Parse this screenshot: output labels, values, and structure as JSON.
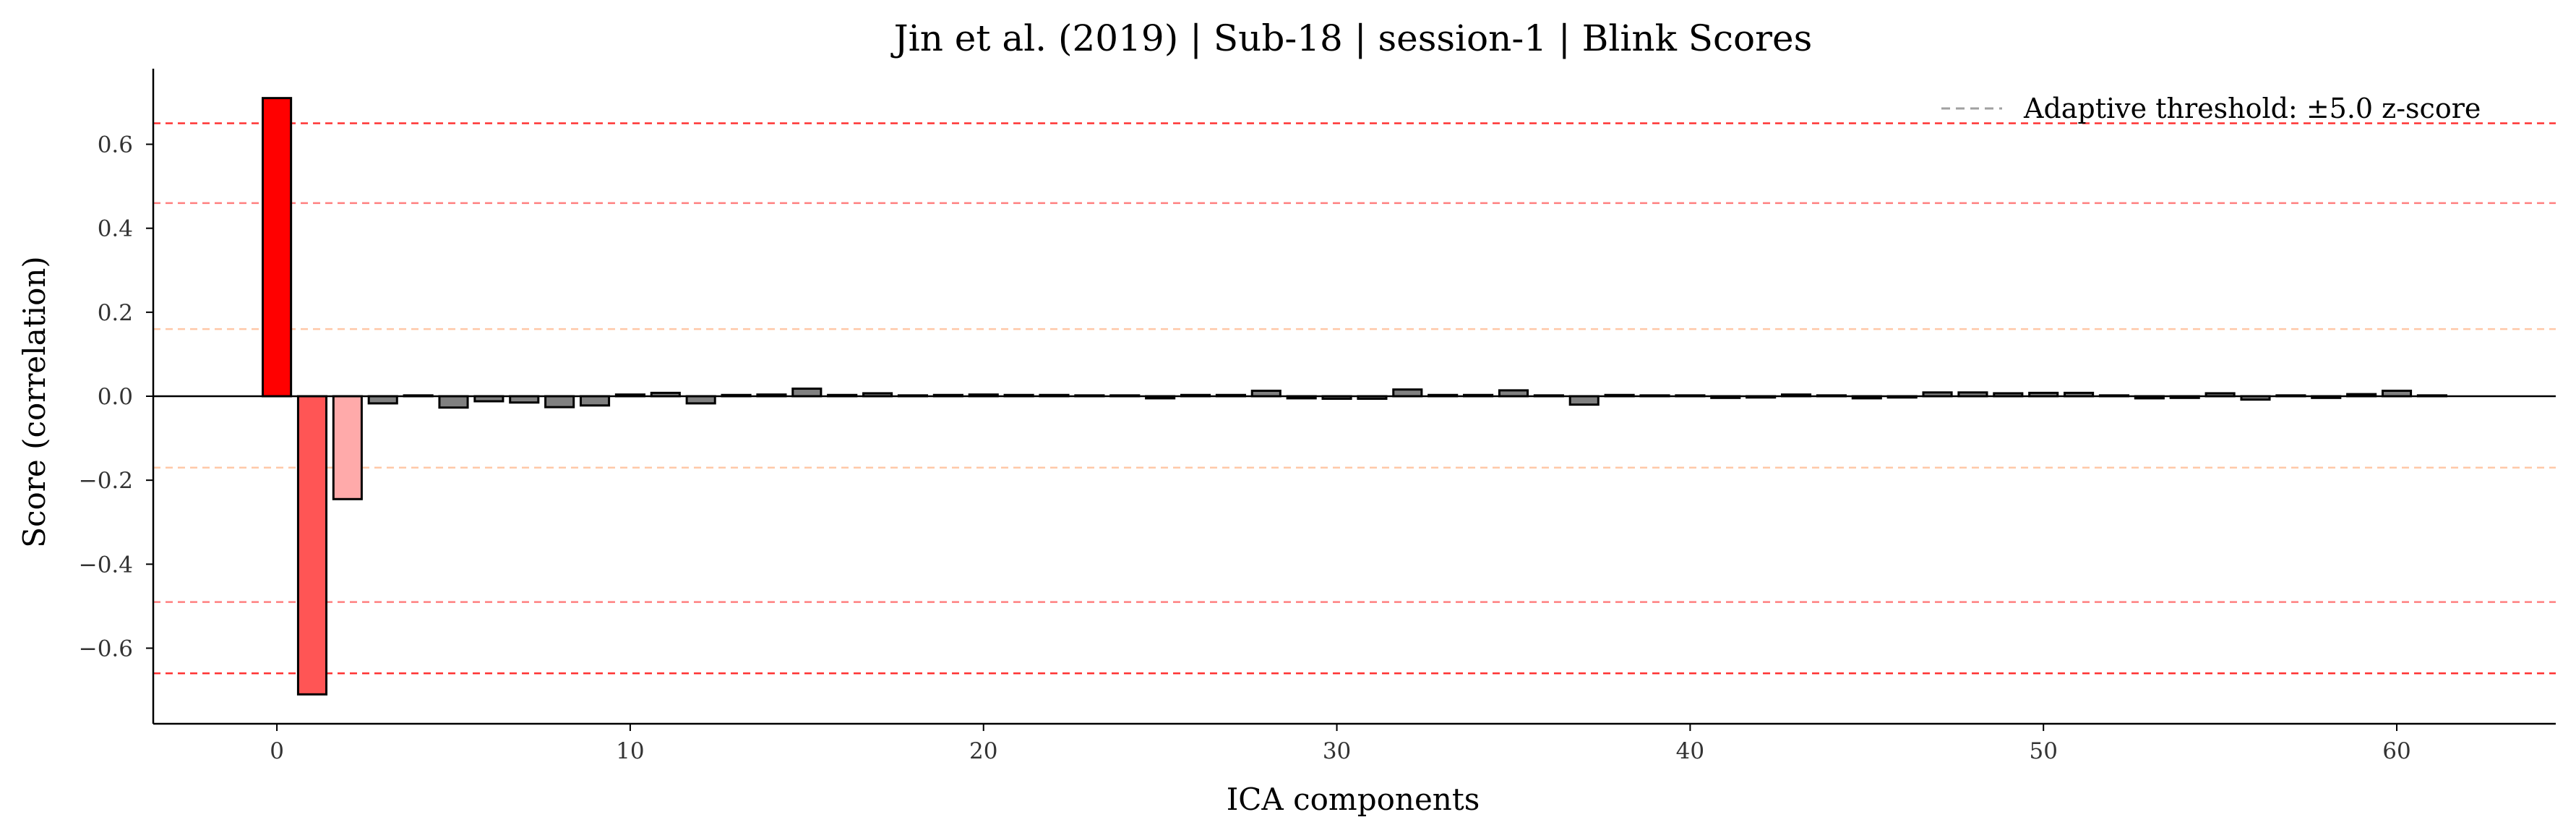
{
  "chart_data": {
    "type": "bar",
    "title": "Jin et al. (2019) | Sub-18 | session-1 | Blink Scores",
    "xlabel": "ICA components",
    "ylabel": "Score (correlation)",
    "xlim": [
      -3.5,
      64.5
    ],
    "ylim": [
      -0.78,
      0.78
    ],
    "xticks": [
      0,
      10,
      20,
      30,
      40,
      50,
      60
    ],
    "yticks": [
      -0.6,
      -0.4,
      -0.2,
      0.0,
      0.2,
      0.4,
      0.6
    ],
    "ytick_labels": [
      "−0.6",
      "−0.4",
      "−0.2",
      "0.0",
      "0.2",
      "0.4",
      "0.6"
    ],
    "x": [
      0,
      1,
      2,
      3,
      4,
      5,
      6,
      7,
      8,
      9,
      10,
      11,
      12,
      13,
      14,
      15,
      16,
      17,
      18,
      19,
      20,
      21,
      22,
      23,
      24,
      25,
      26,
      27,
      28,
      29,
      30,
      31,
      32,
      33,
      34,
      35,
      36,
      37,
      38,
      39,
      40,
      41,
      42,
      43,
      44,
      45,
      46,
      47,
      48,
      49,
      50,
      51,
      52,
      53,
      54,
      55,
      56,
      57,
      58,
      59,
      60,
      61
    ],
    "values": [
      0.71,
      -0.71,
      -0.245,
      -0.017,
      0.002,
      -0.027,
      -0.012,
      -0.015,
      -0.026,
      -0.022,
      0.004,
      0.008,
      -0.017,
      0.003,
      0.004,
      0.018,
      0.003,
      0.007,
      0.002,
      0.003,
      0.004,
      0.003,
      0.003,
      0.002,
      0.002,
      -0.005,
      0.003,
      0.003,
      0.013,
      -0.005,
      -0.006,
      -0.006,
      0.016,
      0.003,
      0.003,
      0.014,
      0.002,
      -0.02,
      0.003,
      0.002,
      0.002,
      -0.004,
      -0.003,
      0.004,
      0.002,
      -0.005,
      -0.003,
      0.009,
      0.009,
      0.007,
      0.008,
      0.008,
      0.002,
      -0.005,
      -0.004,
      0.007,
      -0.008,
      0.002,
      -0.004,
      0.005,
      0.013,
      0.002
    ],
    "bar_colors": {
      "0": "#ff0000",
      "1": "#ff5555",
      "2": "#ffaaaa",
      "default": "#808080"
    },
    "threshold_lines": [
      {
        "y": 0.65,
        "color": "#ff3333"
      },
      {
        "y": 0.46,
        "color": "#ff8080"
      },
      {
        "y": 0.16,
        "color": "#ffc8a8"
      },
      {
        "y": -0.17,
        "color": "#ffc8a8"
      },
      {
        "y": -0.49,
        "color": "#ff8080"
      },
      {
        "y": -0.66,
        "color": "#ff3333"
      }
    ],
    "legend": {
      "label": "Adaptive threshold: ±5.0 z-score",
      "position": "top-right",
      "line_color": "#a0a0a0"
    },
    "grid": false
  }
}
